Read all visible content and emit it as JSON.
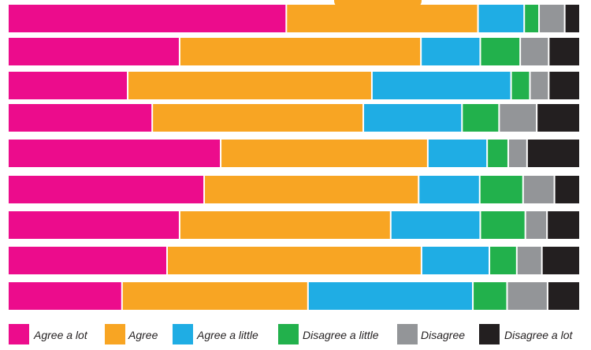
{
  "chart_data": {
    "type": "bar",
    "orientation": "horizontal",
    "stacked": true,
    "normalized": true,
    "title": "",
    "xlabel": "",
    "ylabel": "",
    "xlim": [
      0,
      100
    ],
    "grid": false,
    "legend_position": "bottom",
    "categories": [
      "",
      "",
      "",
      "",
      "",
      "",
      "",
      "",
      ""
    ],
    "series": [
      {
        "name": "Agree a lot",
        "color": "#ec0c8c",
        "values": [
          48.8,
          30.1,
          21.0,
          25.3,
          37.3,
          34.4,
          30.1,
          27.9,
          20.0
        ]
      },
      {
        "name": "Agree",
        "color": "#f8a523",
        "values": [
          33.6,
          42.3,
          42.8,
          37.0,
          36.3,
          37.6,
          37.0,
          44.6,
          32.6
        ]
      },
      {
        "name": "Agree a little",
        "color": "#1fade4",
        "values": [
          8.1,
          10.4,
          24.4,
          17.3,
          10.4,
          10.7,
          15.7,
          11.9,
          28.9
        ]
      },
      {
        "name": "Disagree a little",
        "color": "#22b14c",
        "values": [
          2.6,
          7.0,
          3.3,
          6.5,
          3.7,
          7.6,
          7.9,
          4.8,
          6.0
        ]
      },
      {
        "name": "Disagree",
        "color": "#939598",
        "values": [
          4.5,
          5.0,
          3.3,
          6.6,
          3.3,
          5.5,
          3.8,
          4.4,
          7.1
        ]
      },
      {
        "name": "Disagree a lot",
        "color": "#231f20",
        "values": [
          2.4,
          5.2,
          5.2,
          7.3,
          9.0,
          4.2,
          5.5,
          6.4,
          5.4
        ]
      }
    ]
  }
}
